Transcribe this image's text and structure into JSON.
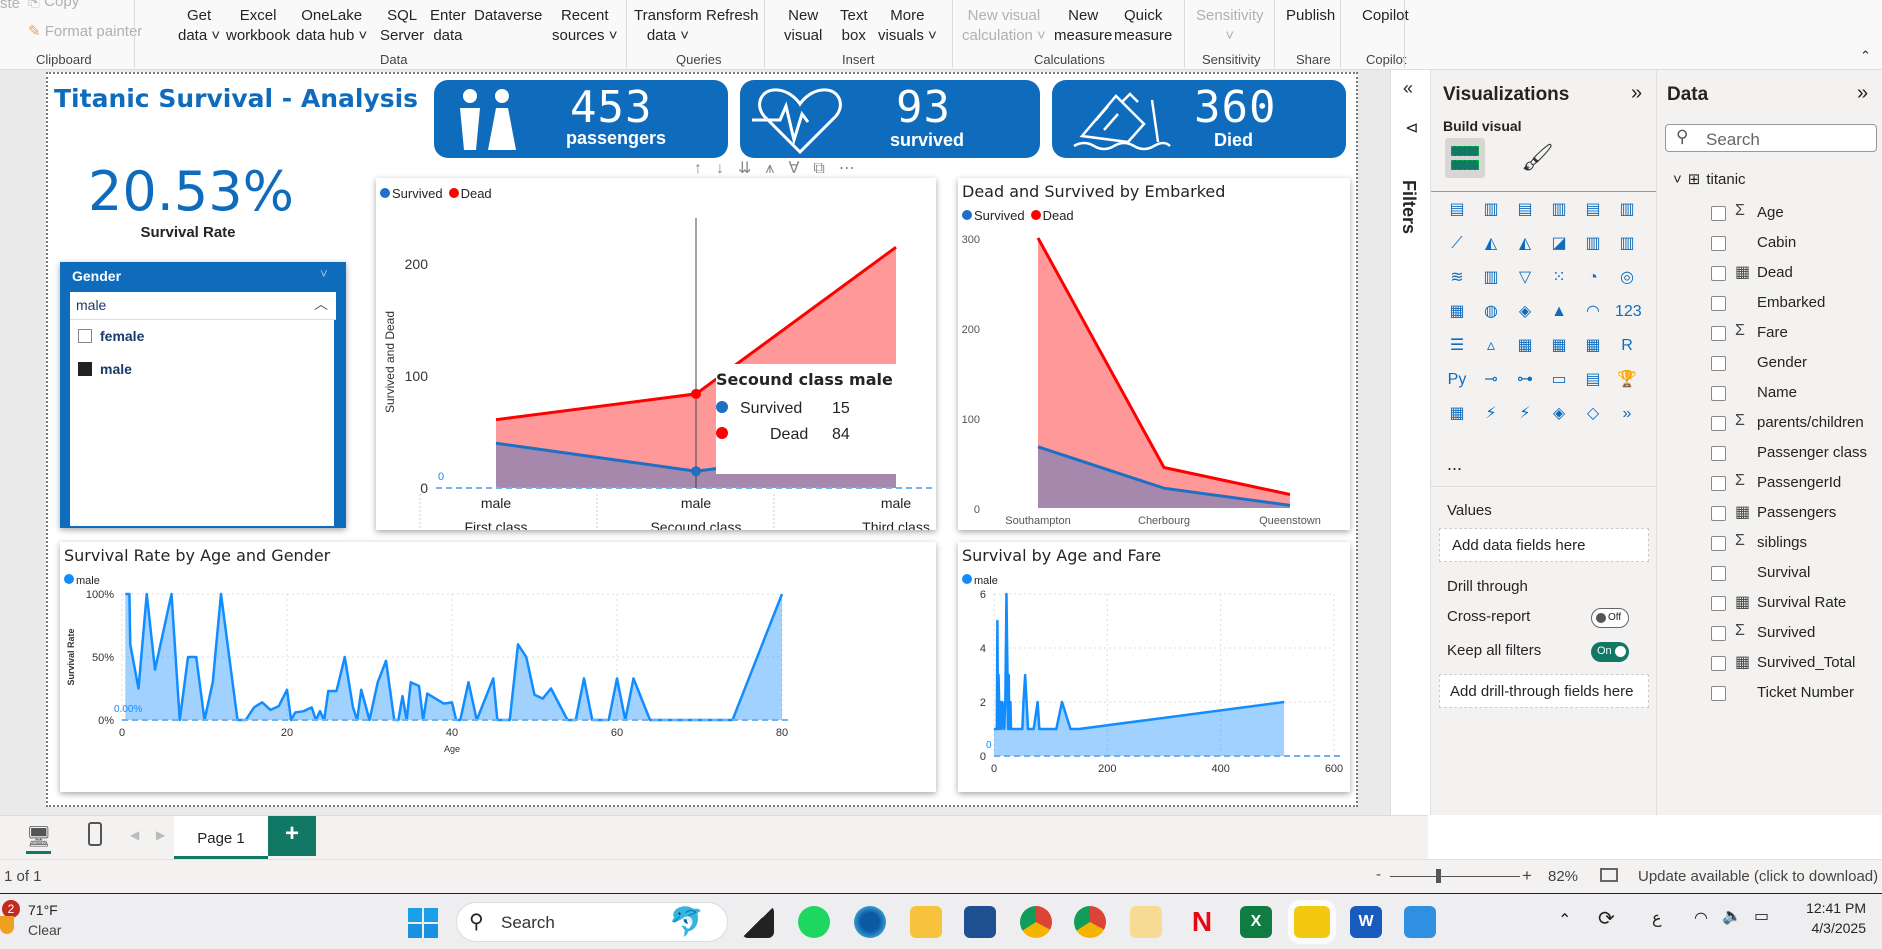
{
  "ribbon": {
    "clipboard": {
      "copy": "Copy",
      "format_painter": "Format painter",
      "paste": "ste",
      "group": "Clipboard"
    },
    "data": {
      "get_data": [
        "Get",
        "data"
      ],
      "excel": [
        "Excel",
        "workbook"
      ],
      "onelake": [
        "OneLake",
        "data hub"
      ],
      "sql": [
        "SQL",
        "Server"
      ],
      "enter": [
        "Enter",
        "data"
      ],
      "dataverse": "Dataverse",
      "recent": [
        "Recent",
        "sources"
      ],
      "group": "Data"
    },
    "queries": {
      "transform": [
        "Transform",
        "data"
      ],
      "refresh": "Refresh",
      "group": "Queries"
    },
    "insert": {
      "new_visual": [
        "New",
        "visual"
      ],
      "text_box": [
        "Text",
        "box"
      ],
      "more_visuals": [
        "More",
        "visuals"
      ],
      "group": "Insert"
    },
    "calculations": {
      "new_visual_calc": [
        "New visual",
        "calculation"
      ],
      "new_measure": [
        "New",
        "measure"
      ],
      "quick_measure": [
        "Quick",
        "measure"
      ],
      "group": "Calculations"
    },
    "sensitivity": {
      "label": "Sensitivity",
      "group": "Sensitivity"
    },
    "share": {
      "publish": "Publish",
      "group": "Share"
    },
    "copilot": {
      "label": "Copilot",
      "group": "Copilot"
    }
  },
  "report": {
    "title": "Titanic Survival - Analysis",
    "survival_rate": {
      "value": "20.53%",
      "label": "Survival Rate"
    },
    "kpis": [
      {
        "value": "453",
        "label": "passengers",
        "icon": "people-icon"
      },
      {
        "value": "93",
        "label": "survived",
        "icon": "heartbeat-icon"
      },
      {
        "value": "360",
        "label": "Died",
        "icon": "sinking-ship-icon"
      }
    ],
    "slicer": {
      "title": "Gender",
      "selected": "male",
      "options": [
        {
          "label": "female",
          "checked": false
        },
        {
          "label": "male",
          "checked": true
        }
      ]
    },
    "tooltip": {
      "title": "Secound class male",
      "rows": [
        {
          "label": "Survived",
          "value": "15",
          "color": "#1f6fc5"
        },
        {
          "label": "Dead",
          "value": "84",
          "color": "#ff0000"
        }
      ]
    }
  },
  "chart_data": [
    {
      "type": "area",
      "title": "",
      "ylabel": "Survived and Dead",
      "categories": [
        [
          "male",
          "First class"
        ],
        [
          "male",
          "Secound class"
        ],
        [
          "male",
          "Third class"
        ]
      ],
      "series": [
        {
          "name": "Survived",
          "values": [
            40,
            15,
            38
          ],
          "color": "#1f6fc5"
        },
        {
          "name": "Dead",
          "values": [
            61,
            84,
            215
          ],
          "color": "#ff0000"
        }
      ],
      "yticks": [
        "0",
        "100",
        "200"
      ],
      "ylim": [
        0,
        250
      ],
      "zero_label": "0",
      "legend": "top-left"
    },
    {
      "type": "area",
      "title": "Dead and Survived by Embarked",
      "categories": [
        "Southampton",
        "Cherbourg",
        "Queenstown"
      ],
      "series": [
        {
          "name": "Survived",
          "values": [
            68,
            22,
            3
          ],
          "color": "#1f6fc5"
        },
        {
          "name": "Dead",
          "values": [
            300,
            45,
            15
          ],
          "color": "#ff0000"
        }
      ],
      "yticks": [
        "0",
        "100",
        "200",
        "300"
      ],
      "ylim": [
        0,
        300
      ],
      "legend": "top-left"
    },
    {
      "type": "area",
      "title": "Survival Rate by Age and Gender",
      "xlabel": "Age",
      "ylabel": "Survival Rate",
      "series": [
        {
          "name": "male",
          "color": "#118dff",
          "x": [
            0.4,
            0.9,
            1,
            2,
            3,
            4,
            6,
            7,
            8,
            9,
            10,
            11,
            12,
            14,
            15,
            16,
            17,
            18,
            19,
            20,
            20.5,
            21,
            22,
            23,
            23.5,
            24,
            24.5,
            25,
            26,
            27,
            28,
            28.5,
            29,
            30,
            31,
            32,
            33,
            33.5,
            34,
            34.5,
            35,
            36,
            36.5,
            37,
            38,
            39,
            40,
            40.5,
            41,
            42,
            43,
            45,
            45.5,
            47,
            48,
            49,
            50,
            51,
            52,
            54,
            55,
            56,
            57,
            59,
            60,
            61,
            62,
            64,
            65,
            70,
            71,
            74,
            80
          ],
          "y": [
            100,
            100,
            60,
            25,
            100,
            40,
            100,
            0,
            50,
            50,
            0,
            30,
            100,
            0,
            0,
            10,
            14,
            8,
            11,
            24,
            0,
            6,
            7,
            10,
            0,
            7,
            0,
            23,
            23,
            50,
            10,
            0,
            24,
            0,
            30,
            47,
            0,
            0,
            19,
            0,
            30,
            27,
            0,
            21,
            17,
            13,
            14,
            0,
            0,
            30,
            0,
            33,
            0,
            0,
            60,
            50,
            20,
            17,
            25,
            0,
            0,
            33,
            0,
            0,
            33,
            0,
            33,
            0,
            0,
            0,
            0,
            0,
            100
          ]
        }
      ],
      "yticks": [
        "0%",
        "50%",
        "100%"
      ],
      "xticks": [
        "0",
        "20",
        "40",
        "60",
        "80"
      ],
      "xlim": [
        0,
        80
      ],
      "ylim": [
        0,
        100
      ],
      "zero_label": "0.00%",
      "legend": "top-left"
    },
    {
      "type": "area",
      "title": "Survival by Age and Fare",
      "series": [
        {
          "name": "male",
          "color": "#118dff",
          "x": [
            0,
            5,
            6,
            7,
            8,
            10,
            12,
            13,
            15,
            18,
            20,
            22,
            25,
            26,
            27,
            29,
            30,
            32,
            35,
            40,
            50,
            52,
            55,
            60,
            70,
            77,
            80,
            90,
            110,
            120,
            135,
            150,
            512
          ],
          "y": [
            1,
            1,
            5,
            1,
            3,
            1,
            2,
            1,
            2,
            1,
            2,
            6,
            1,
            3,
            1,
            2,
            1,
            1,
            1,
            1,
            1,
            2,
            3,
            1,
            1,
            2,
            1,
            1,
            1,
            2,
            1,
            1,
            2
          ]
        }
      ],
      "yticks": [
        "0",
        "2",
        "4",
        "6"
      ],
      "xticks": [
        "0",
        "200",
        "400",
        "600"
      ],
      "xlim": [
        0,
        600
      ],
      "ylim": [
        0,
        6
      ],
      "zero_label": "0",
      "legend": "top-left"
    }
  ],
  "filters_pane": {
    "label": "Filters"
  },
  "visualizations": {
    "title": "Visualizations",
    "build_visual": "Build visual",
    "values_label": "Values",
    "values_placeholder": "Add data fields here",
    "drill_through": "Drill through",
    "cross_report": "Cross-report",
    "cross_report_state": "Off",
    "keep_filters": "Keep all filters",
    "keep_filters_state": "On",
    "drill_placeholder": "Add drill-through fields here",
    "more": "..."
  },
  "data_pane": {
    "title": "Data",
    "search_placeholder": "Search",
    "table": "titanic",
    "fields": [
      {
        "name": "Age",
        "icon": "Σ"
      },
      {
        "name": "Cabin",
        "icon": ""
      },
      {
        "name": "Dead",
        "icon": "▦"
      },
      {
        "name": "Embarked",
        "icon": ""
      },
      {
        "name": "Fare",
        "icon": "Σ"
      },
      {
        "name": "Gender",
        "icon": ""
      },
      {
        "name": "Name",
        "icon": ""
      },
      {
        "name": "parents/children",
        "icon": "Σ"
      },
      {
        "name": "Passenger class",
        "icon": ""
      },
      {
        "name": "PassengerId",
        "icon": "Σ"
      },
      {
        "name": "Passengers",
        "icon": "▦"
      },
      {
        "name": "siblings",
        "icon": "Σ"
      },
      {
        "name": "Survival",
        "icon": ""
      },
      {
        "name": "Survival Rate",
        "icon": "▦"
      },
      {
        "name": "Survived",
        "icon": "Σ"
      },
      {
        "name": "Survived_Total",
        "icon": "▦"
      },
      {
        "name": "Ticket Number",
        "icon": ""
      }
    ]
  },
  "pages": {
    "active": "Page 1",
    "add": "+"
  },
  "status": {
    "page_count": "1 of 1",
    "zoom": "82%",
    "zoom_value": 82,
    "update": "Update available (click to download)"
  },
  "taskbar": {
    "weather_temp": "71°F",
    "weather_text": "Clear",
    "weather_badge": "2",
    "search": "Search",
    "time": "12:41 PM",
    "date": "4/3/2025",
    "lang": "ع"
  }
}
